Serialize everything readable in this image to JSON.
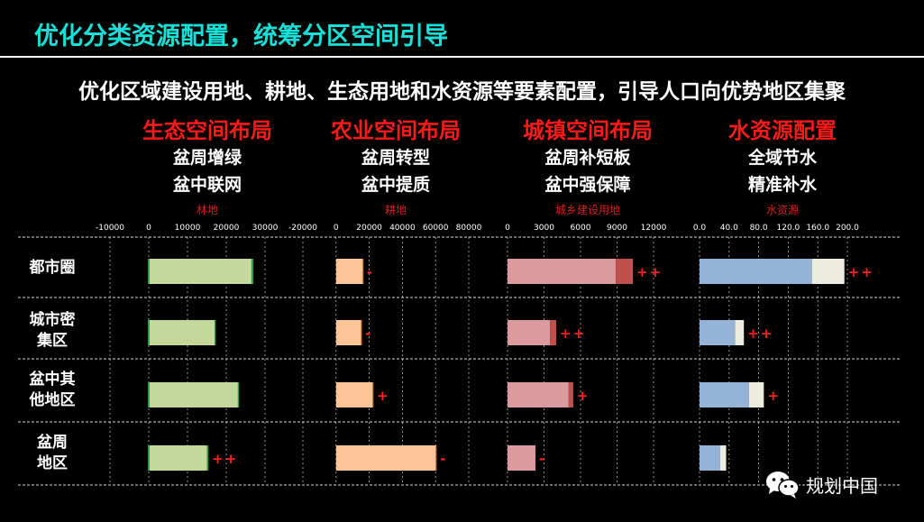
{
  "page": {
    "title": "优化分类资源配置，统筹分区空间引导",
    "subtitle": "优化区域建设用地、耕地、生态用地和水资源等要素配置，引导人口向优势地区集聚"
  },
  "columns": [
    {
      "title": "生态空间布局",
      "lines": [
        "盆周增绿",
        "盆中联网"
      ],
      "metric": "林地"
    },
    {
      "title": "农业空间布局",
      "lines": [
        "盆周转型",
        "盆中提质"
      ],
      "metric": "耕地"
    },
    {
      "title": "城镇空间布局",
      "lines": [
        "盆周补短板",
        "盆中强保障"
      ],
      "metric": "城乡建设用地"
    },
    {
      "title": "水资源配置",
      "lines": [
        "全域节水",
        "精准补水"
      ],
      "metric": "水资源"
    }
  ],
  "rows": [
    "都市圈",
    "城市密集区",
    "盆中其他地区",
    "盆周地区"
  ],
  "row_labels": [
    [
      "都市圈"
    ],
    [
      "城市密",
      "集区"
    ],
    [
      "盆中其",
      "他地区"
    ],
    [
      "盆周",
      "地区"
    ]
  ],
  "chart_data": [
    {
      "type": "bar",
      "orientation": "horizontal",
      "stacked": true,
      "metric": "林地",
      "categories": [
        "都市圈",
        "城市密集区",
        "盆中其他地区",
        "盆周地区"
      ],
      "xlim": [
        -10000,
        30000
      ],
      "ticks": [
        "-10000",
        "0",
        "10000",
        "20000",
        "30000"
      ],
      "series": [
        {
          "values": [
            26500,
            17000,
            23000,
            15000
          ],
          "color": "#c5d89c"
        },
        {
          "values": [
            500,
            300,
            300,
            400
          ],
          "color": "#2e9e4a"
        }
      ],
      "annotations": [
        "",
        "",
        "",
        "++"
      ]
    },
    {
      "type": "bar",
      "orientation": "horizontal",
      "stacked": true,
      "metric": "耕地",
      "categories": [
        "都市圈",
        "城市密集区",
        "盆中其他地区",
        "盆周地区"
      ],
      "xlim": [
        -20000,
        80000
      ],
      "ticks": [
        "-20000",
        "0",
        "20000",
        "40000",
        "60000",
        "80000"
      ],
      "series": [
        {
          "values": [
            16000,
            15000,
            22000,
            60000
          ],
          "color": "#fbc597"
        },
        {
          "values": [
            300,
            300,
            400,
            600
          ],
          "color": "#e8823c"
        }
      ],
      "annotations": [
        "-",
        "-",
        "+",
        "-"
      ]
    },
    {
      "type": "bar",
      "orientation": "horizontal",
      "stacked": true,
      "metric": "城乡建设用地",
      "categories": [
        "都市圈",
        "城市密集区",
        "盆中其他地区",
        "盆周地区"
      ],
      "xlim": [
        0,
        12000
      ],
      "ticks": [
        "0",
        "3000",
        "6000",
        "9000",
        "12000"
      ],
      "series": [
        {
          "values": [
            8900,
            3500,
            5000,
            2300
          ],
          "color": "#db9a9d"
        },
        {
          "values": [
            1400,
            500,
            400,
            0
          ],
          "color": "#c0504d"
        }
      ],
      "annotations": [
        "++",
        "++",
        "+",
        "-"
      ]
    },
    {
      "type": "bar",
      "orientation": "horizontal",
      "stacked": true,
      "metric": "水资源",
      "categories": [
        "都市圈",
        "城市密集区",
        "盆中其他地区",
        "盆周地区"
      ],
      "xlim": [
        0,
        200
      ],
      "ticks": [
        "0.0",
        "40.0",
        "80.0",
        "120.0",
        "160.0",
        "200.0"
      ],
      "series": [
        {
          "values": [
            152,
            48,
            67,
            28
          ],
          "color": "#95b3d7"
        },
        {
          "values": [
            44,
            12,
            20,
            8
          ],
          "color": "#ececdf"
        }
      ],
      "annotations": [
        "++",
        "++",
        "+",
        ""
      ]
    }
  ],
  "logo": {
    "text": "规划中国",
    "icon": "wechat-icon"
  }
}
